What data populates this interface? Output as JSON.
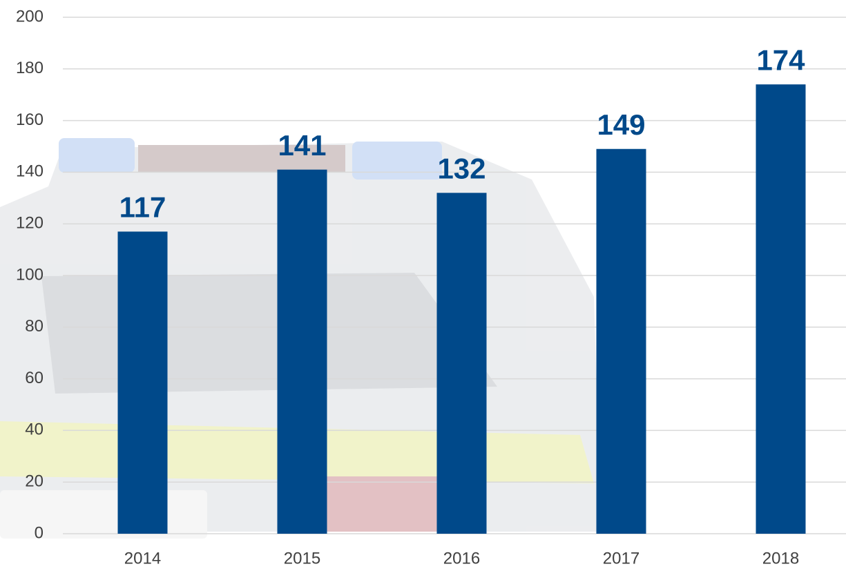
{
  "chart_data": {
    "type": "bar",
    "categories": [
      "2014",
      "2015",
      "2016",
      "2017",
      "2018"
    ],
    "values": [
      117,
      141,
      132,
      149,
      174
    ],
    "color": "#00498a",
    "ylim": [
      0,
      200
    ],
    "yticks": [
      0,
      20,
      40,
      60,
      80,
      100,
      120,
      140,
      160,
      180,
      200
    ],
    "grid": true
  }
}
